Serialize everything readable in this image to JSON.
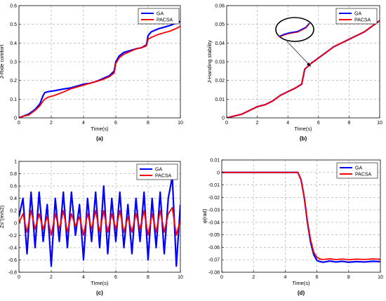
{
  "chart_data": [
    {
      "id": "a",
      "type": "line",
      "caption": "(a)",
      "xlabel": "Time(s)",
      "ylabel": "J-Ride comfort",
      "xlim": [
        0,
        10
      ],
      "ylim": [
        0,
        0.6
      ],
      "xticks": [
        0,
        2,
        4,
        6,
        8,
        10
      ],
      "yticks": [
        0,
        0.1,
        0.2,
        0.3,
        0.4,
        0.5,
        0.6
      ],
      "grid": true,
      "legend_position": "top-left",
      "series": [
        {
          "name": "GA",
          "color": "#0000ff",
          "x": [
            0,
            0.3,
            0.6,
            1.0,
            1.3,
            1.5,
            1.6,
            1.8,
            2.2,
            2.8,
            3.2,
            3.6,
            4.0,
            4.4,
            4.8,
            5.2,
            5.6,
            5.9,
            6.0,
            6.2,
            6.5,
            6.9,
            7.3,
            7.6,
            7.9,
            8.0,
            8.2,
            8.6,
            9.0,
            9.4,
            9.8,
            10.0
          ],
          "y": [
            0,
            0.01,
            0.02,
            0.045,
            0.075,
            0.12,
            0.135,
            0.14,
            0.145,
            0.155,
            0.16,
            0.17,
            0.18,
            0.185,
            0.195,
            0.21,
            0.225,
            0.25,
            0.3,
            0.33,
            0.35,
            0.36,
            0.37,
            0.375,
            0.39,
            0.44,
            0.46,
            0.475,
            0.485,
            0.495,
            0.51,
            0.515
          ]
        },
        {
          "name": "PACSA",
          "color": "#ff0000",
          "x": [
            0,
            0.3,
            0.6,
            1.0,
            1.3,
            1.5,
            1.6,
            1.8,
            2.2,
            2.8,
            3.2,
            3.6,
            4.0,
            4.4,
            4.8,
            5.2,
            5.6,
            5.9,
            6.0,
            6.2,
            6.5,
            6.9,
            7.3,
            7.6,
            7.9,
            8.0,
            8.2,
            8.6,
            9.0,
            9.4,
            9.8,
            10.0
          ],
          "y": [
            0,
            0.01,
            0.015,
            0.04,
            0.065,
            0.09,
            0.1,
            0.11,
            0.12,
            0.14,
            0.155,
            0.165,
            0.175,
            0.185,
            0.195,
            0.205,
            0.22,
            0.24,
            0.29,
            0.32,
            0.34,
            0.355,
            0.37,
            0.375,
            0.385,
            0.42,
            0.43,
            0.445,
            0.455,
            0.465,
            0.48,
            0.49
          ]
        }
      ]
    },
    {
      "id": "b",
      "type": "line",
      "caption": "(b)",
      "xlabel": "Time(s)",
      "ylabel": "J-Handing stability",
      "xlim": [
        0,
        10
      ],
      "ylim": [
        0,
        0.06
      ],
      "xticks": [
        0,
        2,
        4,
        6,
        8,
        10
      ],
      "yticks": [
        0,
        0.01,
        0.02,
        0.03,
        0.04,
        0.05,
        0.06
      ],
      "grid": true,
      "legend_position": "top-right",
      "series": [
        {
          "name": "GA",
          "color": "#0000ff",
          "x": [
            0,
            0.5,
            1.0,
            1.5,
            2.0,
            2.5,
            3.0,
            3.5,
            4.0,
            4.5,
            4.9,
            5.0,
            5.1,
            5.5,
            6.0,
            6.5,
            7.0,
            7.5,
            8.0,
            8.5,
            9.0,
            9.5,
            10.0
          ],
          "y": [
            0,
            0.001,
            0.002,
            0.004,
            0.006,
            0.007,
            0.009,
            0.012,
            0.014,
            0.016,
            0.018,
            0.022,
            0.026,
            0.029,
            0.032,
            0.035,
            0.038,
            0.04,
            0.042,
            0.044,
            0.046,
            0.049,
            0.052
          ]
        },
        {
          "name": "PACSA",
          "color": "#ff0000",
          "x": [
            0,
            0.5,
            1.0,
            1.5,
            2.0,
            2.5,
            3.0,
            3.5,
            4.0,
            4.5,
            4.9,
            5.0,
            5.1,
            5.5,
            6.0,
            6.5,
            7.0,
            7.5,
            8.0,
            8.5,
            9.0,
            9.5,
            10.0
          ],
          "y": [
            0,
            0.001,
            0.002,
            0.004,
            0.006,
            0.007,
            0.009,
            0.012,
            0.014,
            0.016,
            0.018,
            0.022,
            0.026,
            0.029,
            0.032,
            0.035,
            0.038,
            0.04,
            0.042,
            0.044,
            0.046,
            0.049,
            0.052
          ]
        }
      ]
    },
    {
      "id": "c",
      "type": "line",
      "caption": "(c)",
      "xlabel": "Time(s)",
      "ylabel": "Zs''(m/s2)",
      "xlim": [
        0,
        10
      ],
      "ylim": [
        -0.8,
        1
      ],
      "xticks": [
        0,
        2,
        4,
        6,
        8,
        10
      ],
      "yticks": [
        -0.8,
        -0.6,
        -0.4,
        -0.2,
        0,
        0.2,
        0.4,
        0.6,
        0.8,
        1
      ],
      "grid": true,
      "legend_position": "top-right",
      "series": [
        {
          "name": "GA",
          "color": "#0000ff",
          "x": [
            0,
            0.25,
            0.5,
            0.75,
            1.0,
            1.25,
            1.5,
            1.75,
            2.0,
            2.25,
            2.5,
            2.75,
            3.0,
            3.25,
            3.5,
            3.75,
            4.0,
            4.25,
            4.5,
            4.75,
            5.0,
            5.25,
            5.5,
            5.75,
            6.0,
            6.25,
            6.5,
            6.75,
            7.0,
            7.25,
            7.5,
            7.75,
            8.0,
            8.25,
            8.5,
            8.75,
            9.0,
            9.25,
            9.5,
            9.75,
            10.0
          ],
          "y": [
            0.1,
            0.4,
            -0.5,
            0.5,
            -0.4,
            0.5,
            -0.3,
            0.3,
            -0.7,
            0.4,
            -0.3,
            0.5,
            -0.4,
            0.5,
            -0.2,
            0.3,
            -0.6,
            0.4,
            -0.3,
            0.5,
            -0.4,
            0.6,
            -0.5,
            0.4,
            -0.3,
            0.5,
            -0.4,
            0.3,
            -0.5,
            0.4,
            -0.3,
            0.5,
            -0.6,
            0.4,
            -0.4,
            0.5,
            -0.5,
            0.4,
            0.75,
            -0.7,
            0.3
          ]
        },
        {
          "name": "PACSA",
          "color": "#ff0000",
          "x": [
            0,
            0.25,
            0.5,
            0.75,
            1.0,
            1.25,
            1.5,
            1.75,
            2.0,
            2.25,
            2.5,
            2.75,
            3.0,
            3.25,
            3.5,
            3.75,
            4.0,
            4.25,
            4.5,
            4.75,
            5.0,
            5.25,
            5.5,
            5.75,
            6.0,
            6.25,
            6.5,
            6.75,
            7.0,
            7.25,
            7.5,
            7.75,
            8.0,
            8.25,
            8.5,
            8.75,
            9.0,
            9.25,
            9.5,
            9.75,
            10.0
          ],
          "y": [
            0.0,
            0.15,
            -0.15,
            0.2,
            -0.1,
            0.15,
            -0.1,
            0.1,
            -0.2,
            0.15,
            -0.1,
            0.2,
            -0.15,
            0.15,
            -0.05,
            0.1,
            -0.2,
            0.15,
            -0.1,
            0.2,
            -0.15,
            0.2,
            -0.15,
            0.15,
            -0.1,
            0.2,
            -0.15,
            0.1,
            -0.15,
            0.15,
            -0.1,
            0.2,
            -0.2,
            0.15,
            -0.15,
            0.2,
            -0.15,
            0.15,
            0.25,
            -0.2,
            0.05
          ]
        }
      ]
    },
    {
      "id": "d",
      "type": "line",
      "caption": "(d)",
      "xlabel": "Time(s)",
      "ylabel": "φ(rad)",
      "xlim": [
        0,
        10
      ],
      "ylim": [
        -0.08,
        0.01
      ],
      "xticks": [
        0,
        2,
        4,
        6,
        8,
        10
      ],
      "yticks": [
        -0.08,
        -0.07,
        -0.06,
        -0.05,
        -0.04,
        -0.03,
        -0.02,
        -0.01,
        0,
        0.01
      ],
      "grid": true,
      "legend_position": "top-right",
      "series": [
        {
          "name": "GA",
          "color": "#0000ff",
          "x": [
            0,
            1,
            2,
            3,
            4,
            4.8,
            5.0,
            5.2,
            5.4,
            5.6,
            5.8,
            6.0,
            6.2,
            6.4,
            6.8,
            7.2,
            7.6,
            8.0,
            8.5,
            9.0,
            9.5,
            10.0
          ],
          "y": [
            0,
            0,
            0,
            0,
            0,
            0,
            -0.006,
            -0.02,
            -0.04,
            -0.056,
            -0.066,
            -0.0705,
            -0.0715,
            -0.072,
            -0.071,
            -0.0718,
            -0.0712,
            -0.072,
            -0.0715,
            -0.0718,
            -0.0712,
            -0.0715
          ]
        },
        {
          "name": "PACSA",
          "color": "#ff0000",
          "x": [
            0,
            1,
            2,
            3,
            4,
            4.8,
            5.0,
            5.2,
            5.4,
            5.6,
            5.8,
            6.0,
            6.2,
            6.4,
            6.8,
            7.2,
            7.6,
            8.0,
            8.5,
            9.0,
            9.5,
            10.0
          ],
          "y": [
            0,
            0,
            0,
            0,
            0,
            0,
            -0.006,
            -0.02,
            -0.039,
            -0.054,
            -0.064,
            -0.068,
            -0.0695,
            -0.0698,
            -0.0692,
            -0.0699,
            -0.0694,
            -0.07,
            -0.0695,
            -0.0698,
            -0.0693,
            -0.0696
          ]
        }
      ]
    }
  ]
}
